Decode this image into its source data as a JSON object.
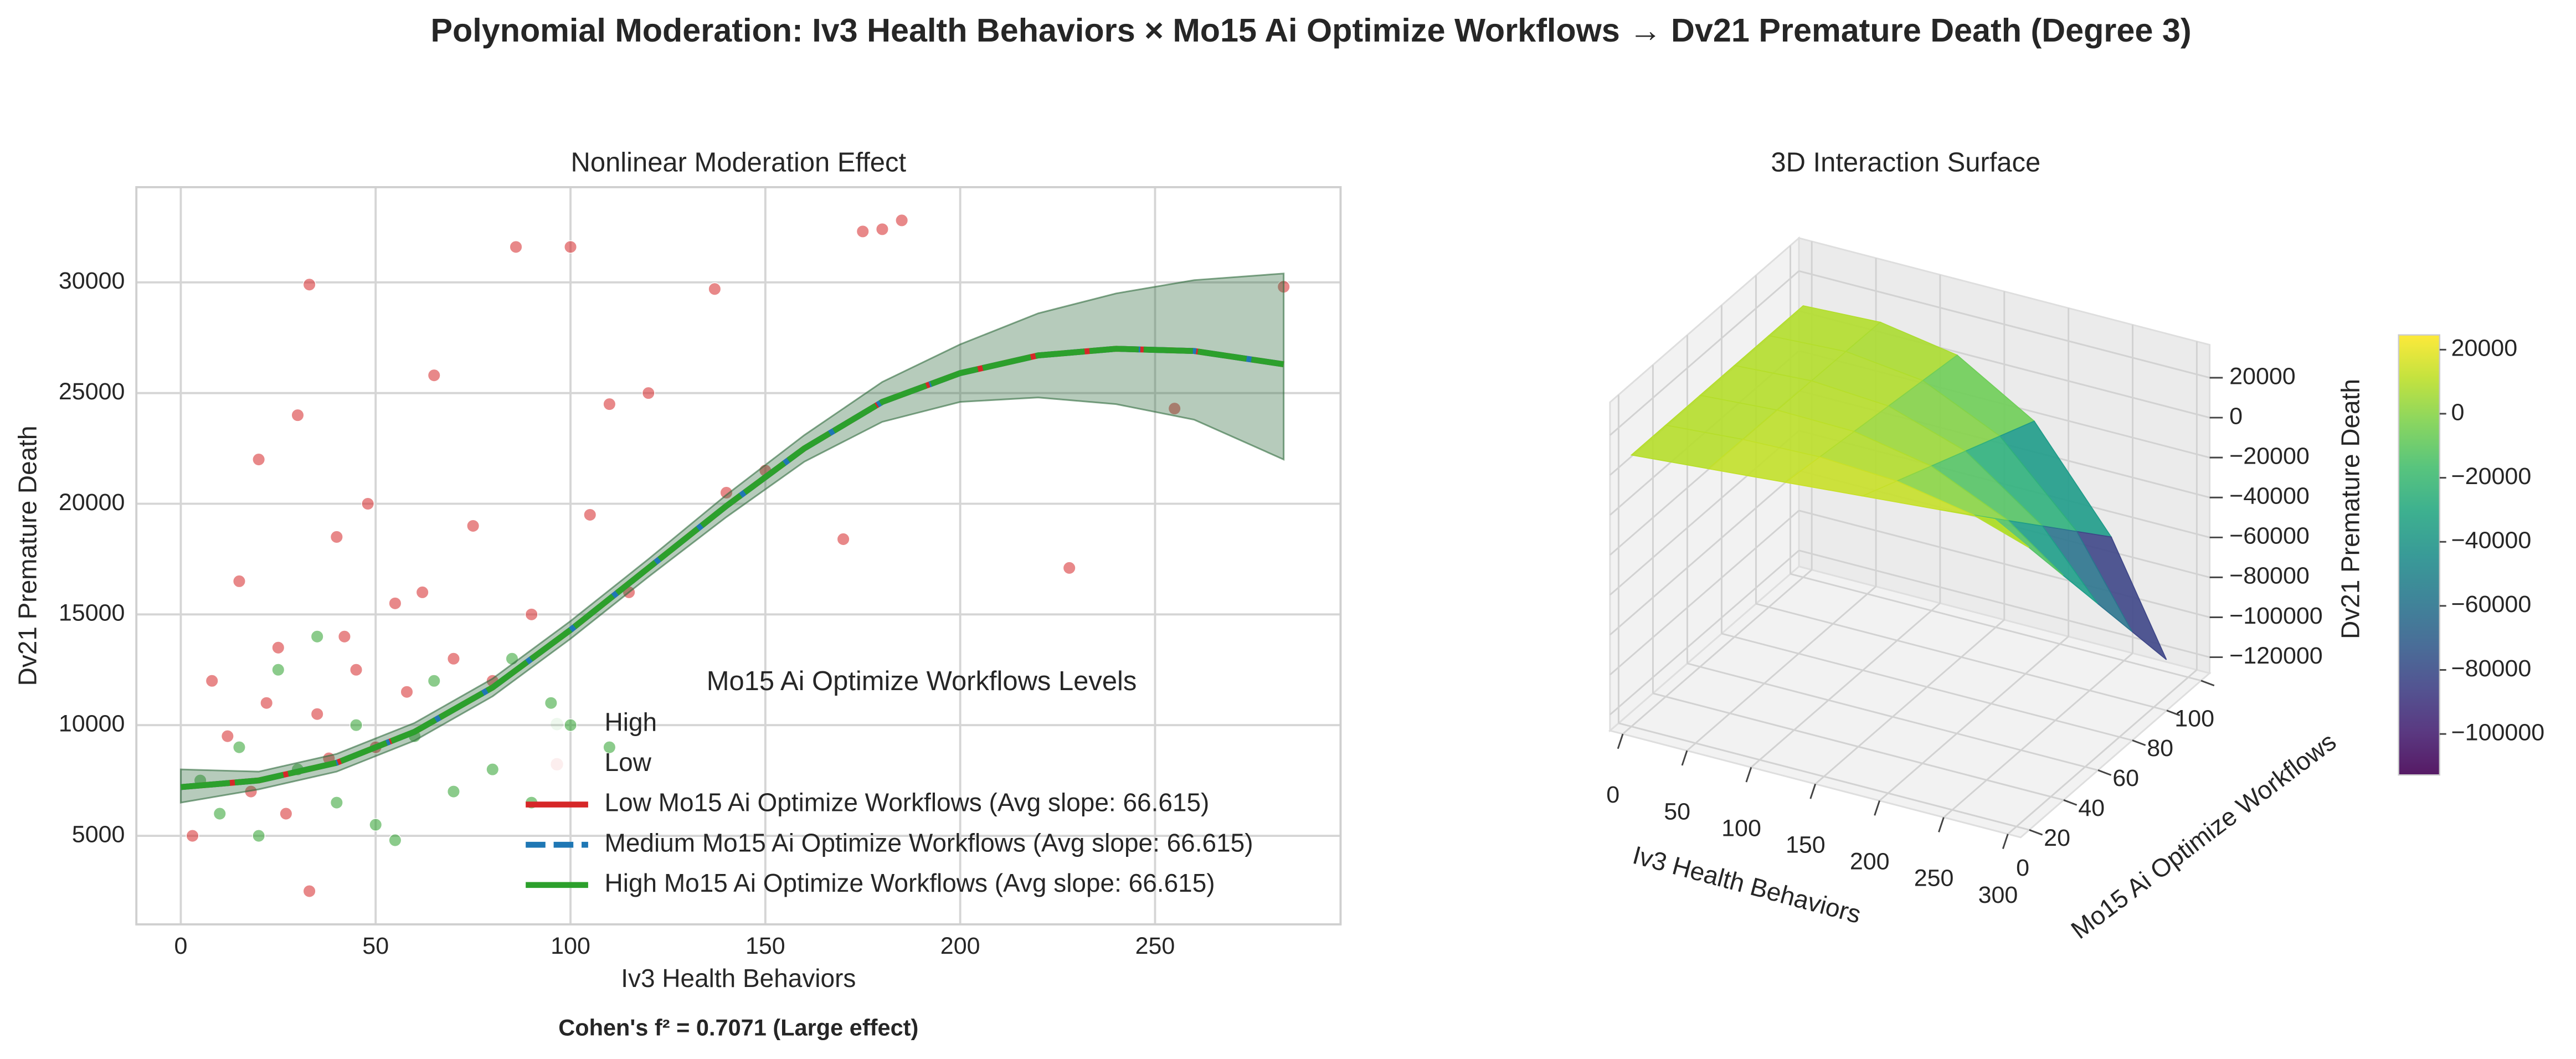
{
  "title": "Polynomial Moderation: Iv3 Health Behaviors × Mo15 Ai Optimize Workflows → Dv21 Premature Death (Degree 3)",
  "chart_data": [
    {
      "type": "scatter",
      "title": "Nonlinear Moderation Effect",
      "x_label": "Iv3 Health Behaviors",
      "y_label": "Dv21 Premature Death",
      "annotation": "Cohen's f² = 0.7071 (Large effect)",
      "legend_title": "Mo15 Ai Optimize Workflows Levels",
      "legend": "lower right",
      "grid": true,
      "xlim": [
        -11.4,
        297.6
      ],
      "xticks": [
        0,
        50,
        100,
        150,
        200,
        250
      ],
      "ylim": [
        1000,
        34300
      ],
      "yticks": [
        5000,
        10000,
        15000,
        20000,
        25000,
        30000
      ],
      "series": [
        {
          "name": "High",
          "color": "#2ca02c",
          "x": [
            5,
            10,
            15,
            20,
            25,
            30,
            35,
            40,
            45,
            50,
            55,
            60,
            65,
            70,
            80,
            85,
            90,
            95,
            100,
            110
          ],
          "values": [
            7500,
            6000,
            9000,
            5000,
            12500,
            8000,
            14000,
            6500,
            10000,
            5500,
            4800,
            9500,
            12000,
            7000,
            8000,
            13000,
            6500,
            11000,
            10000,
            9000
          ]
        },
        {
          "name": "Low",
          "color": "#d62728",
          "x": [
            3,
            8,
            12,
            15,
            18,
            20,
            22,
            25,
            27,
            30,
            33,
            35,
            38,
            40,
            42,
            45,
            48,
            50,
            55,
            58,
            62,
            65,
            70,
            75,
            80,
            86,
            90,
            100,
            105,
            110,
            115,
            120,
            137,
            140,
            150,
            170,
            175,
            180,
            185,
            228,
            255,
            283,
            33
          ],
          "values": [
            5000,
            12000,
            9500,
            16500,
            7000,
            22000,
            11000,
            13500,
            6000,
            24000,
            29900,
            10500,
            8500,
            18500,
            14000,
            12500,
            20000,
            9000,
            15500,
            11500,
            16000,
            25800,
            13000,
            19000,
            12000,
            31600,
            15000,
            31600,
            19500,
            24500,
            16000,
            25000,
            29700,
            20500,
            21500,
            18400,
            32300,
            32400,
            32800,
            17100,
            24300,
            29800,
            2500
          ]
        }
      ],
      "line_x": [
        0,
        20,
        40,
        60,
        80,
        100,
        120,
        140,
        160,
        180,
        200,
        220,
        240,
        260,
        283
      ],
      "band": {
        "lower": [
          6500,
          7100,
          7900,
          9300,
          11300,
          13900,
          16700,
          19400,
          21900,
          23700,
          24600,
          24800,
          24500,
          23800,
          22000
        ],
        "upper": [
          8000,
          7900,
          8700,
          10100,
          12100,
          14700,
          17500,
          20400,
          23100,
          25500,
          27200,
          28600,
          29500,
          30100,
          30400
        ]
      },
      "lines": [
        {
          "name": "Low Mo15 Ai Optimize Workflows (Avg slope: 66.615)",
          "color": "#d62728",
          "dash": "solid",
          "values": [
            7200,
            7500,
            8300,
            9700,
            11700,
            14300,
            17100,
            19900,
            22500,
            24600,
            25900,
            26700,
            27000,
            26900,
            26300
          ]
        },
        {
          "name": "Medium Mo15 Ai Optimize Workflows (Avg slope: 66.615)",
          "color": "#1f77b4",
          "dash": "dashed",
          "values": [
            7200,
            7500,
            8300,
            9700,
            11700,
            14300,
            17100,
            19900,
            22500,
            24600,
            25900,
            26700,
            27000,
            26900,
            26300
          ]
        },
        {
          "name": "High Mo15 Ai Optimize Workflows (Avg slope: 66.615)",
          "color": "#2ca02c",
          "dash": "dashdot",
          "values": [
            7200,
            7500,
            8300,
            9700,
            11700,
            14300,
            17100,
            19900,
            22500,
            24600,
            25900,
            26700,
            27000,
            26900,
            26300
          ]
        }
      ]
    },
    {
      "type": "surface",
      "title": "3D Interaction Surface",
      "x_label": "Iv3 Health Behaviors",
      "y_label": "Mo15 Ai Optimize Workflows",
      "z_label": "Dv21 Premature Death",
      "x": [
        0,
        60,
        120,
        180,
        240,
        283
      ],
      "y": [
        0,
        20,
        40,
        60,
        80,
        100
      ],
      "z": [
        [
          8000,
          11180,
          14360,
          17540,
          20720,
          23000
        ],
        [
          8000,
          10900,
          12150,
          10090,
          3030,
          -6000
        ],
        [
          8000,
          10630,
          9940,
          2630,
          -14660,
          -35000
        ],
        [
          8000,
          10350,
          7730,
          -4820,
          -32350,
          -64000
        ],
        [
          8000,
          10070,
          5520,
          -12270,
          -50040,
          -93000
        ],
        [
          8000,
          9800,
          3310,
          -19730,
          -67730,
          -122000
        ]
      ],
      "xlim": [
        -10,
        310
      ],
      "xticks": [
        0,
        50,
        100,
        150,
        200,
        250,
        300
      ],
      "ylim": [
        -5,
        105
      ],
      "yticks": [
        0,
        20,
        40,
        60,
        80,
        100
      ],
      "zlim": [
        -128000,
        36500
      ],
      "zticks": [
        20000,
        0,
        {
          "value": -20000,
          "label": "−20000"
        },
        {
          "value": -40000,
          "label": "−40000"
        },
        {
          "value": -60000,
          "label": "−60000"
        },
        {
          "value": -80000,
          "label": "−80000"
        },
        {
          "value": -100000,
          "label": "−100000"
        },
        {
          "value": -120000,
          "label": "−120000"
        }
      ],
      "colormap": "viridis",
      "clim": [
        -112800,
        24600
      ],
      "colorbar_ticks": [
        20000,
        0,
        {
          "value": -20000,
          "label": "−20000"
        },
        {
          "value": -40000,
          "label": "−40000"
        },
        {
          "value": -60000,
          "label": "−60000"
        },
        {
          "value": -80000,
          "label": "−80000"
        },
        {
          "value": -100000,
          "label": "−100000"
        }
      ]
    }
  ]
}
